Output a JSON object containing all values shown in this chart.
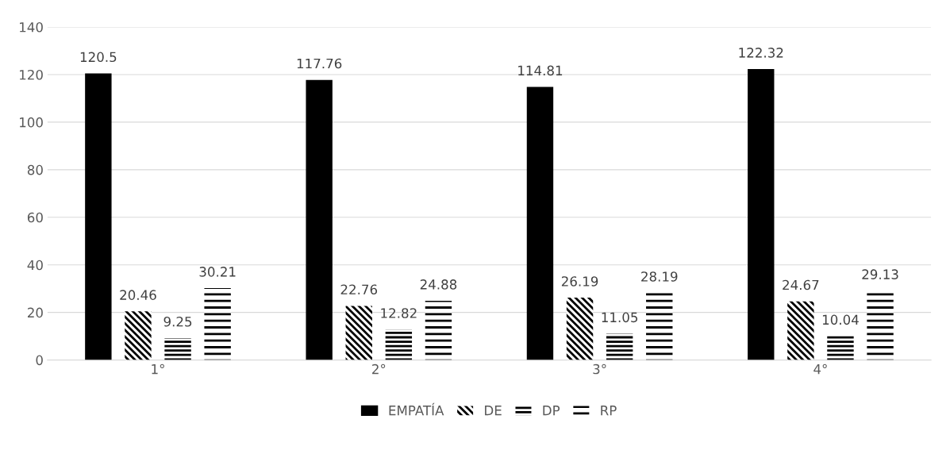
{
  "chart_data": {
    "type": "bar",
    "categories": [
      "1°",
      "2°",
      "3°",
      "4°"
    ],
    "series": [
      {
        "name": "EMPATÍA",
        "color": "#000000",
        "values": [
          120.5,
          117.76,
          114.81,
          122.32
        ]
      },
      {
        "name": "DE",
        "color": "#000000",
        "values": [
          20.46,
          22.76,
          26.19,
          24.67
        ]
      },
      {
        "name": "DP",
        "color": "#000000",
        "values": [
          9.25,
          12.82,
          11.05,
          10.04
        ]
      },
      {
        "name": "RP",
        "color": "#000000",
        "values": [
          30.21,
          24.88,
          28.19,
          29.13
        ]
      }
    ],
    "ylim": [
      0,
      140
    ],
    "yticks": [
      0,
      20,
      40,
      60,
      80,
      100,
      120,
      140
    ],
    "grid": "y",
    "legend": "bottom",
    "data_labels": true
  }
}
